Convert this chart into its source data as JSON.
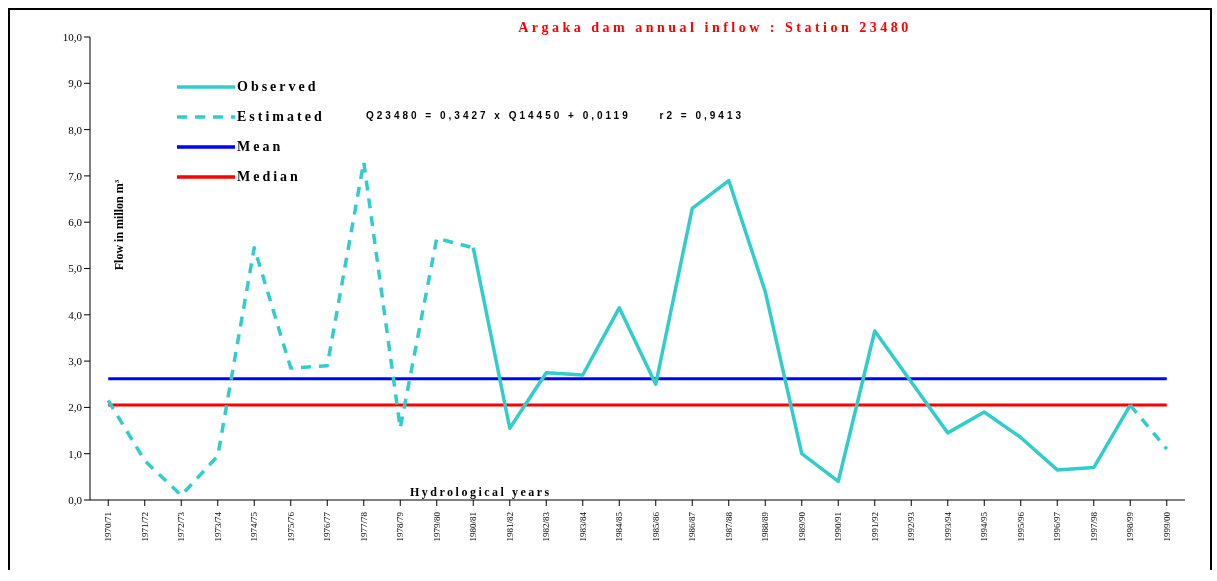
{
  "chart_data": {
    "type": "line",
    "title": "Argaka dam annual inflow : Station 23480",
    "xlabel": "Hydrological years",
    "ylabel": "Flow in millon m$^{3}$",
    "categories": [
      "1970/71",
      "1971/72",
      "1972/73",
      "1973/74",
      "1974/75",
      "1975/76",
      "1976/77",
      "1977/78",
      "1978/79",
      "1979/80",
      "1980/81",
      "1981/82",
      "1982/83",
      "1983/84",
      "1984/85",
      "1985/86",
      "1986/87",
      "1987/88",
      "1988/89",
      "1989/90",
      "1990/91",
      "1991/92",
      "1992/93",
      "1993/94",
      "1994/95",
      "1995/96",
      "1996/97",
      "1997/98",
      "1998/99",
      "1999/00"
    ],
    "series": [
      {
        "name": "Observed",
        "color": "#33cccc",
        "line_style": "solid",
        "values": [
          null,
          null,
          null,
          null,
          null,
          null,
          null,
          null,
          null,
          null,
          5.45,
          1.55,
          2.75,
          2.7,
          4.15,
          2.5,
          6.3,
          6.9,
          4.5,
          1.0,
          0.4,
          3.65,
          2.55,
          1.45,
          1.9,
          1.35,
          0.65,
          0.7,
          2.05,
          null
        ]
      },
      {
        "name": "Estimated",
        "color": "#33cccc",
        "line_style": "dashed",
        "values": [
          2.15,
          0.85,
          0.1,
          0.95,
          5.45,
          2.85,
          2.9,
          7.3,
          1.55,
          5.65,
          5.45,
          null,
          null,
          null,
          null,
          null,
          null,
          null,
          null,
          null,
          null,
          null,
          null,
          null,
          null,
          null,
          null,
          null,
          2.05,
          1.1
        ]
      }
    ],
    "ref_lines": [
      {
        "axis": "y",
        "value": 2.62,
        "label": "Mean",
        "color": "#0000ff"
      },
      {
        "axis": "y",
        "value": 2.05,
        "label": "Median",
        "color": "#ff0000"
      }
    ],
    "annotations": [
      "Q23480 = 0,3427 x Q14450 + 0,0119     r2 = 0,9413"
    ],
    "ylim": [
      0,
      10
    ],
    "yticks": [
      {
        "value": 0,
        "label": "0,0"
      },
      {
        "value": 1,
        "label": "1,0"
      },
      {
        "value": 2,
        "label": "2,0"
      },
      {
        "value": 3,
        "label": "3,0"
      },
      {
        "value": 4,
        "label": "4,0"
      },
      {
        "value": 5,
        "label": "5,0"
      },
      {
        "value": 6,
        "label": "6,0"
      },
      {
        "value": 7,
        "label": "7,0"
      },
      {
        "value": 8,
        "label": "8,0"
      },
      {
        "value": 9,
        "label": "9,0"
      },
      {
        "value": 10,
        "label": "10,0"
      }
    ],
    "grid": false,
    "legend": "top left",
    "marker": "none"
  }
}
